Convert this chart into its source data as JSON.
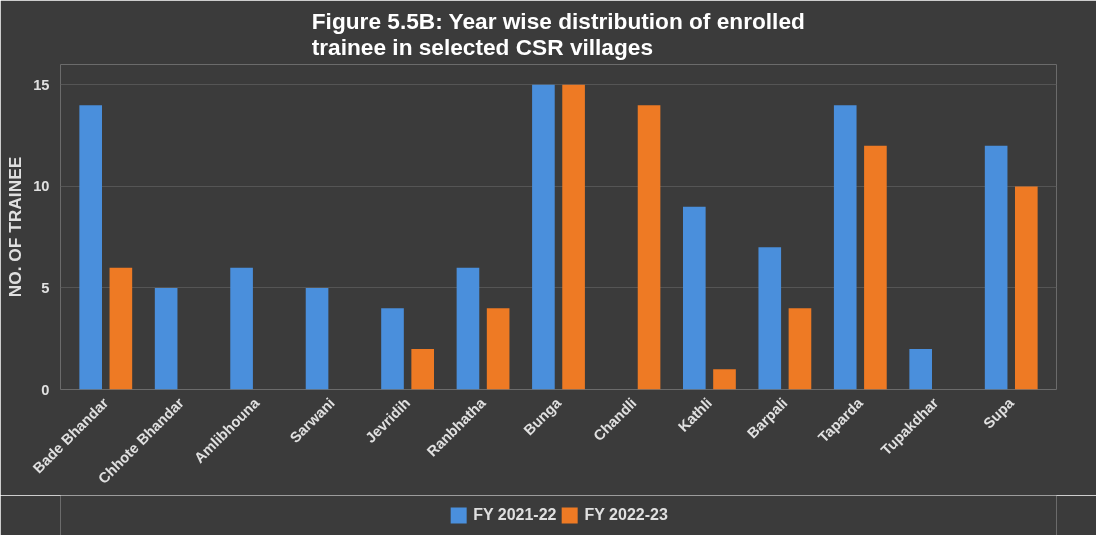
{
  "chart_data": {
    "type": "bar",
    "title": "Figure 5.5B: Year wise distribution of enrolled\ntrainee in selected CSR villages",
    "ylabel": "NO. OF TRAINEE",
    "categories": [
      "Bade Bhandar",
      "Chhote Bhandar",
      "Amlibhouna",
      "Sarwani",
      "Jevridih",
      "Ranbhatha",
      "Bunga",
      "Chandli",
      "Kathli",
      "Barpali",
      "Taparda",
      "Tupakdhar",
      "Supa"
    ],
    "series": [
      {
        "name": "FY 2021-22",
        "color": "#4a8fdc",
        "values": [
          14,
          5,
          6,
          5,
          4,
          6,
          15,
          0,
          9,
          7,
          14,
          2,
          12
        ]
      },
      {
        "name": "FY 2022-23",
        "color": "#ee7a24",
        "values": [
          6,
          0,
          0,
          0,
          2,
          4,
          15,
          14,
          1,
          4,
          12,
          0,
          10
        ]
      }
    ],
    "ylim": [
      0,
      16
    ],
    "yticks": [
      0,
      5,
      10,
      15
    ],
    "grid": "y",
    "legend": "bottom"
  }
}
